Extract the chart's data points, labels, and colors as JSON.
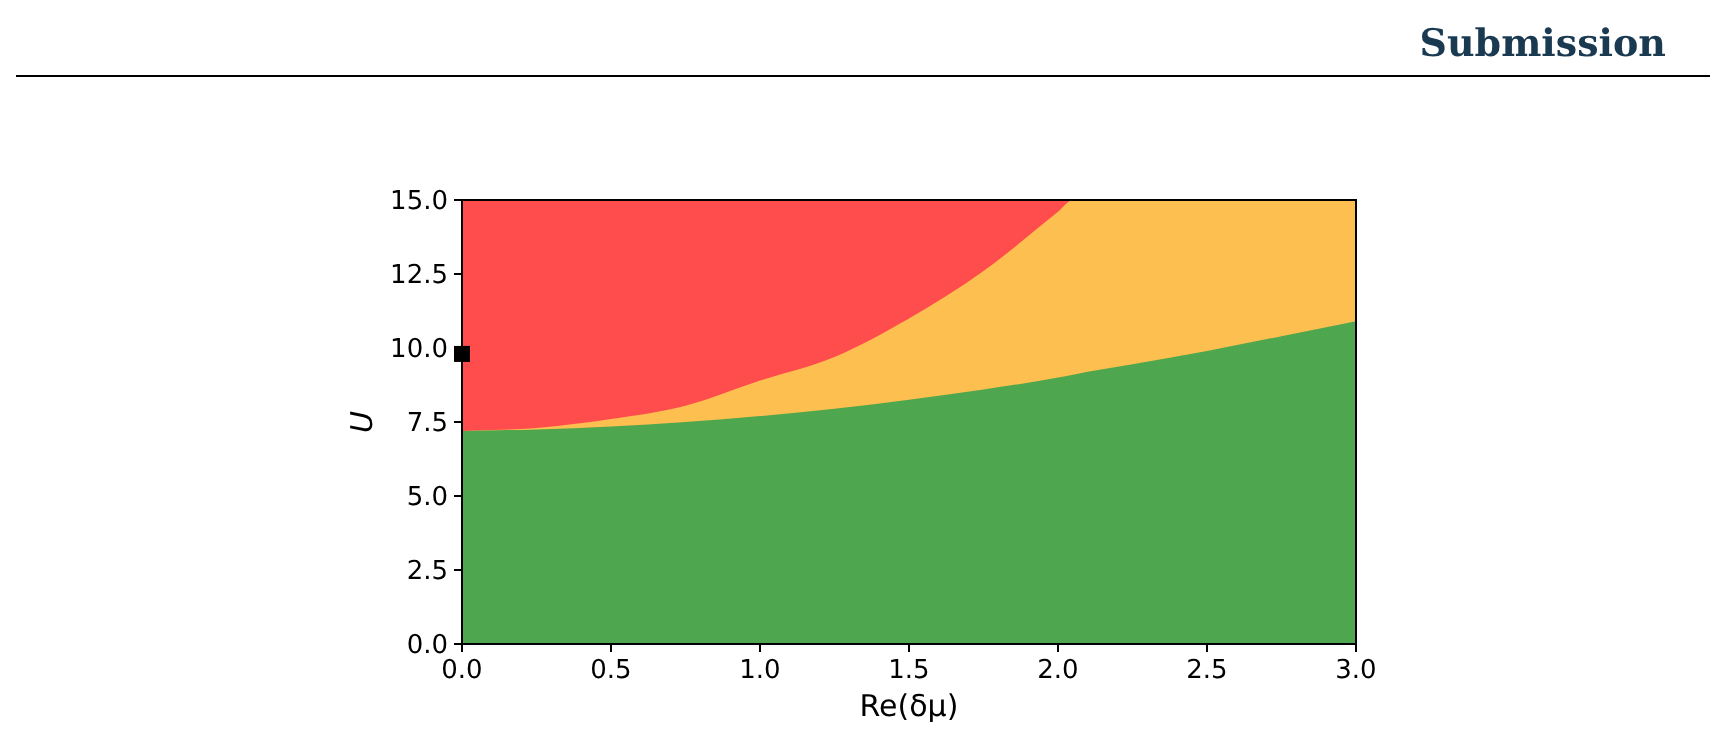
{
  "chart_data": {
    "type": "area",
    "xlabel": "Re(δμ)",
    "ylabel": "U",
    "x": [
      0,
      0.25,
      0.5,
      0.75,
      1.0,
      1.25,
      1.5,
      1.75,
      2.0,
      2.05,
      2.25,
      2.5,
      2.75,
      3.0
    ],
    "series": [
      {
        "color": "#ff4d4d",
        "values": [
          15,
          15,
          15,
          15,
          15,
          15,
          15,
          15,
          15,
          15,
          null,
          null,
          null,
          null
        ]
      },
      {
        "color": "#fdbf4f",
        "values": [
          7.2,
          7.3,
          7.6,
          8.05,
          8.9,
          9.7,
          11.0,
          12.6,
          14.6,
          15,
          15,
          15,
          15,
          15
        ]
      },
      {
        "color": "#4ea64e",
        "values": [
          7.2,
          7.25,
          7.35,
          7.5,
          7.7,
          7.95,
          8.25,
          8.6,
          9.0,
          9.1,
          9.45,
          9.9,
          10.4,
          10.9
        ]
      },
      {
        "type": "scatter",
        "color": "#000000",
        "marker": "square",
        "x": [
          0
        ],
        "values": [
          9.8
        ]
      }
    ],
    "xlim": [
      0,
      3
    ],
    "ylim": [
      0,
      15
    ],
    "xticks": [
      {
        "value": 0,
        "label": "0.0"
      },
      0.5,
      {
        "value": 1,
        "label": "1.0"
      },
      1.5,
      {
        "value": 2,
        "label": "2.0"
      },
      2.5,
      {
        "value": 3,
        "label": "3.0"
      }
    ],
    "yticks": [
      {
        "value": 0,
        "label": "0.0"
      },
      2.5,
      {
        "value": 5,
        "label": "5.0"
      },
      7.5,
      {
        "value": 10,
        "label": "10.0"
      },
      12.5,
      {
        "value": 15,
        "label": "15.0"
      }
    ],
    "grid": false,
    "annotations": [
      "Submission"
    ]
  }
}
